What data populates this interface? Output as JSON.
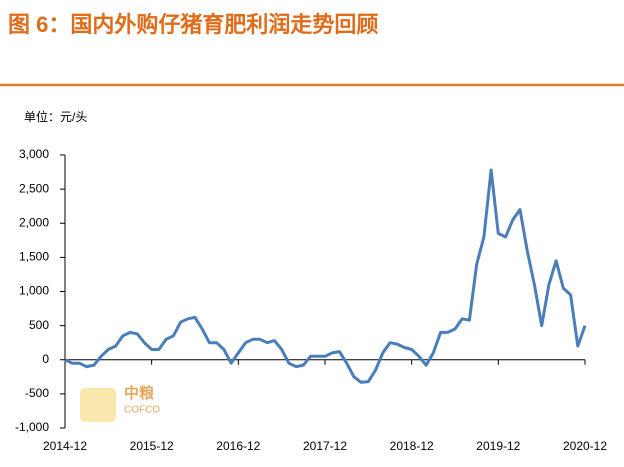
{
  "chart_data": {
    "type": "line",
    "title": "图 6：国内外购仔猪育肥利润走势回顾",
    "y_axis_label": "单位：元/头",
    "watermark": {
      "brand": "中粮",
      "brand_en": "COFCO"
    },
    "categories": [
      "2014-12",
      null,
      null,
      null,
      null,
      null,
      null,
      null,
      null,
      null,
      null,
      null,
      "2015-12",
      null,
      null,
      null,
      null,
      null,
      null,
      null,
      null,
      null,
      null,
      null,
      "2016-12",
      null,
      null,
      null,
      null,
      null,
      null,
      null,
      null,
      null,
      null,
      null,
      "2017-12",
      null,
      null,
      null,
      null,
      null,
      null,
      null,
      null,
      null,
      null,
      null,
      "2018-12",
      null,
      null,
      null,
      null,
      null,
      null,
      null,
      null,
      null,
      null,
      null,
      "2019-12",
      null,
      null,
      null,
      null,
      null,
      null,
      null,
      null,
      null,
      null,
      null,
      "2020-12"
    ],
    "series": [
      {
        "name": "利润",
        "color": "#4a7ebb",
        "values": [
          0,
          -50,
          -50,
          -100,
          -80,
          50,
          150,
          200,
          350,
          400,
          380,
          250,
          150,
          150,
          300,
          350,
          550,
          600,
          620,
          450,
          250,
          250,
          150,
          -50,
          100,
          250,
          300,
          300,
          250,
          280,
          150,
          -50,
          -100,
          -80,
          50,
          50,
          50,
          100,
          120,
          -50,
          -250,
          -330,
          -320,
          -150,
          100,
          250,
          230,
          180,
          150,
          50,
          -80,
          100,
          400,
          400,
          450,
          600,
          580,
          1400,
          1800,
          2780,
          1850,
          1800,
          2050,
          2200,
          1600,
          1100,
          500,
          1100,
          1450,
          1050,
          950,
          200,
          500
        ]
      }
    ],
    "ylim": [
      -1000,
      3000
    ],
    "yticks": [
      {
        "value": -1000,
        "label": "-1,000"
      },
      {
        "value": -500,
        "label": "-500"
      },
      0,
      500,
      {
        "value": 1000,
        "label": "1,000"
      },
      {
        "value": 1500,
        "label": "1,500"
      },
      {
        "value": 2000,
        "label": "2,000"
      },
      {
        "value": 2500,
        "label": "2,500"
      },
      {
        "value": 3000,
        "label": "3,000"
      }
    ]
  }
}
